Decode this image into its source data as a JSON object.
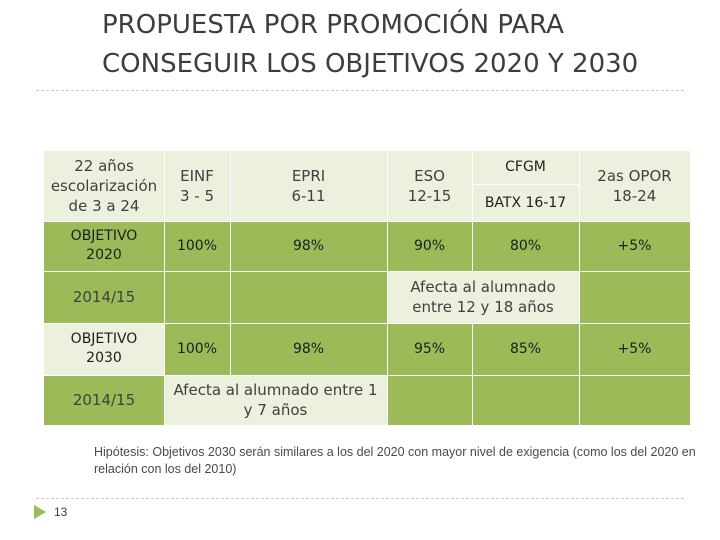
{
  "slide": {
    "title": "PROPUESTA POR PROMOCIÓN PARA CONSEGUIR LOS OBJETIVOS 2020 Y 2030",
    "page_number": "13",
    "note": "Hipótesis: Objetivos 2030 serán similares a los del 2020 con mayor nivel de exigencia (como los del 2020 en relación con los del 2010)"
  },
  "table": {
    "header": {
      "scolarization": "22 años escolarización de 3 a 24",
      "einf": "EINF 3 - 5",
      "epri": "EPRI 6-11",
      "eso": "ESO 12-15",
      "cfgm": "CFGM",
      "batx": "BATX 16-17",
      "opor": "2as OPOR 18-24"
    },
    "obj2020": {
      "label": "OBJETIVO 2020",
      "einf": "100%",
      "epri": "98%",
      "eso": "90%",
      "post": "80%",
      "opor": "+5%"
    },
    "status2014a": {
      "label": "2014/15",
      "note": "Afecta al alumnado entre 12 y 18 años"
    },
    "obj2030": {
      "label": "OBJETIVO 2030",
      "einf": "100%",
      "epri": "98%",
      "eso": "95%",
      "post": "85%",
      "opor": "+5%"
    },
    "status2014b": {
      "label": "2014/15",
      "note": "Afecta al alumnado entre 1 y 7 años"
    }
  }
}
